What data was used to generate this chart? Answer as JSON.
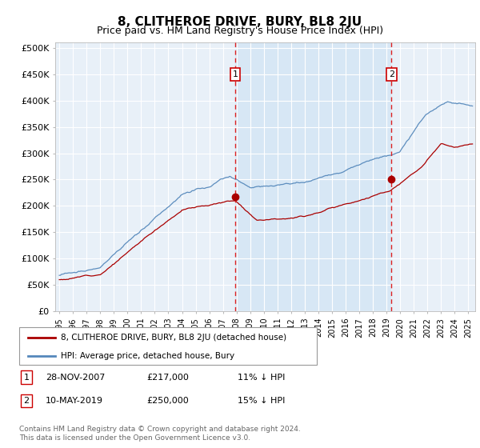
{
  "title": "8, CLITHEROE DRIVE, BURY, BL8 2JU",
  "subtitle": "Price paid vs. HM Land Registry's House Price Index (HPI)",
  "title_fontsize": 11,
  "subtitle_fontsize": 9,
  "background_color": "#ffffff",
  "plot_bg_color": "#e8f0f8",
  "plot_bg_color2": "#d0e4f4",
  "ylabel_ticks": [
    "£0",
    "£50K",
    "£100K",
    "£150K",
    "£200K",
    "£250K",
    "£300K",
    "£350K",
    "£400K",
    "£450K",
    "£500K"
  ],
  "ytick_values": [
    0,
    50000,
    100000,
    150000,
    200000,
    250000,
    300000,
    350000,
    400000,
    450000,
    500000
  ],
  "ylim": [
    0,
    510000
  ],
  "xlim_start": 1994.7,
  "xlim_end": 2025.5,
  "hpi_color": "#5588bb",
  "price_color": "#aa0000",
  "marker1_date": 2007.91,
  "marker2_date": 2019.36,
  "marker1_label": "1",
  "marker2_label": "2",
  "marker_color": "#cc0000",
  "vline_color": "#dd2222",
  "legend_label_price": "8, CLITHEROE DRIVE, BURY, BL8 2JU (detached house)",
  "legend_label_hpi": "HPI: Average price, detached house, Bury",
  "table_row1": [
    "1",
    "28-NOV-2007",
    "£217,000",
    "11% ↓ HPI"
  ],
  "table_row2": [
    "2",
    "10-MAY-2019",
    "£250,000",
    "15% ↓ HPI"
  ],
  "footnote": "Contains HM Land Registry data © Crown copyright and database right 2024.\nThis data is licensed under the Open Government Licence v3.0.",
  "xtick_years": [
    1995,
    1996,
    1997,
    1998,
    1999,
    2000,
    2001,
    2002,
    2003,
    2004,
    2005,
    2006,
    2007,
    2008,
    2009,
    2010,
    2011,
    2012,
    2013,
    2014,
    2015,
    2016,
    2017,
    2018,
    2019,
    2020,
    2021,
    2022,
    2023,
    2024,
    2025
  ]
}
